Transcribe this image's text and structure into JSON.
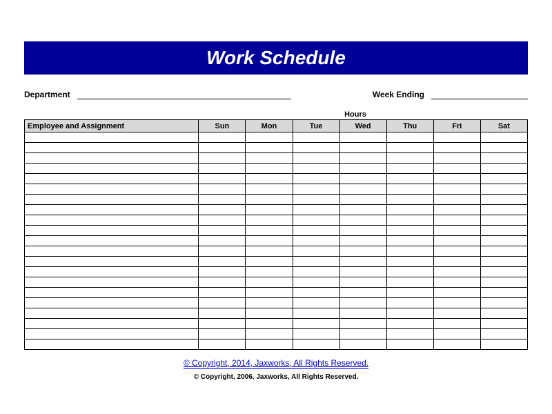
{
  "title": "Work Schedule",
  "meta": {
    "department_label": "Department",
    "week_ending_label": "Week Ending"
  },
  "table": {
    "hours_label": "Hours",
    "employee_header": "Employee and Assignment",
    "day_headers": [
      "Sun",
      "Mon",
      "Tue",
      "Wed",
      "Thu",
      "Fri",
      "Sat"
    ],
    "row_count": 21
  },
  "footer": {
    "copyright_link": "© Copyright, 2014, Jaxworks, All Rights Reserved.",
    "copyright_sub": "© Copyright, 2006, Jaxworks, All Rights Reserved."
  },
  "styling": {
    "title_bg": "#000099",
    "title_fg": "#ffffff",
    "header_bg": "#d9d9d9",
    "border_color": "#000000",
    "link_color": "#0000cc",
    "title_fontsize": 28,
    "label_fontsize": 12,
    "header_fontsize": 11,
    "footer_link_fontsize": 12,
    "footer_sub_fontsize": 10
  }
}
